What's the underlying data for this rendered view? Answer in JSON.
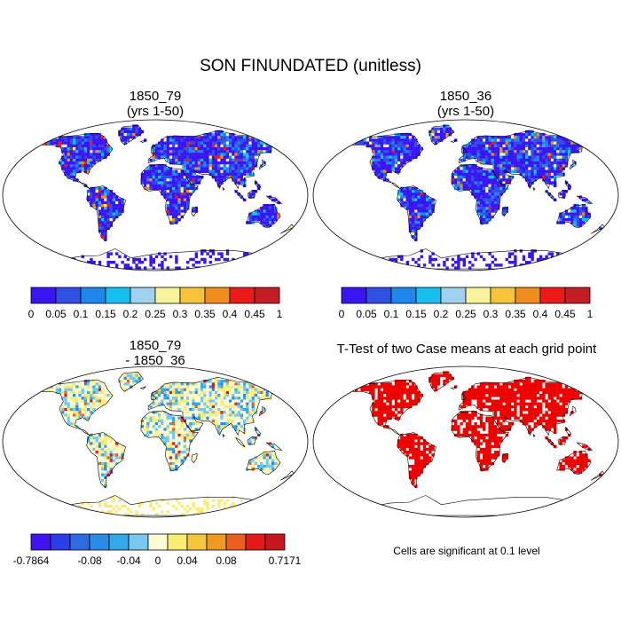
{
  "figure": {
    "title": "SON FINUNDATED (unitless)"
  },
  "panels": [
    {
      "id": "p1",
      "title_line1": "1850_79",
      "title_line2": "(yrs 1-50)",
      "field": "case"
    },
    {
      "id": "p2",
      "title_line1": "1850_36",
      "title_line2": "(yrs 1-50)",
      "field": "case"
    },
    {
      "id": "p3",
      "title_line1": "1850_79",
      "title_line2": "- 1850_36",
      "field": "diff"
    },
    {
      "id": "p4",
      "title_line1": "T-Test of two Case means at each grid point",
      "title_line2": "",
      "field": "ttest"
    }
  ],
  "colorbars": {
    "case": {
      "colors": [
        "#3a14f2",
        "#2f4fe5",
        "#1f86eb",
        "#17bff0",
        "#9fd2ee",
        "#f8f29a",
        "#f6c43b",
        "#f18d1c",
        "#ec1b1b",
        "#c21c24"
      ],
      "labels": [
        "0",
        "0.05",
        "0.1",
        "0.15",
        "0.2",
        "0.25",
        "0.3",
        "0.35",
        "0.4",
        "0.45",
        "1"
      ]
    },
    "diff": {
      "colors": [
        "#4312f2",
        "#2b3de6",
        "#2f6be0",
        "#2b8bea",
        "#35a8ea",
        "#78c8ee",
        "#fdfbd6",
        "#f8ec73",
        "#f6c63b",
        "#f09a22",
        "#ec601f",
        "#e21a1a",
        "#c8161f"
      ],
      "labels": [
        "-0.7864",
        "-0.08",
        "-0.04",
        "0",
        "0.04",
        "0.08",
        "0.7171"
      ]
    }
  },
  "significance_note": "Cells are significant at 0.1 level",
  "significance_color": "#ee0000"
}
